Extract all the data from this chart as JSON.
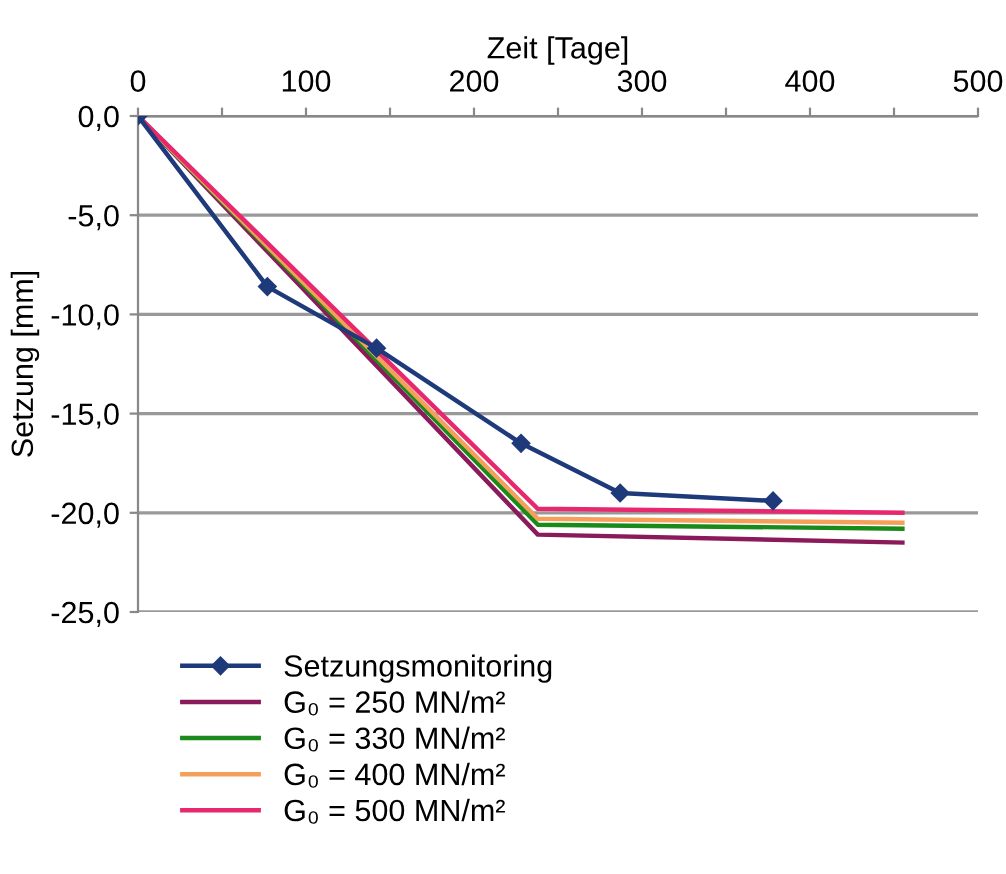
{
  "chart_data": {
    "type": "line",
    "xlabel": "Zeit [Tage]",
    "ylabel": "Setzung [mm]",
    "xlim": [
      0,
      500
    ],
    "ylim": [
      -25,
      0
    ],
    "xticks": [
      0,
      {
        "value": 50,
        "label": null
      },
      100,
      {
        "value": 150,
        "label": null
      },
      200,
      {
        "value": 250,
        "label": null
      },
      300,
      {
        "value": 350,
        "label": null
      },
      400,
      {
        "value": 450,
        "label": null
      },
      500
    ],
    "yticks": [
      {
        "value": 0,
        "label": "0,0"
      },
      {
        "value": -5,
        "label": "-5,0"
      },
      {
        "value": -10,
        "label": "-10,0"
      },
      {
        "value": -15,
        "label": "-15,0"
      },
      {
        "value": -20,
        "label": "-20,0"
      },
      {
        "value": -25,
        "label": "-25,0"
      }
    ],
    "grid": "y",
    "legend": "bottom",
    "series": [
      {
        "name": "Setzungsmonitoring",
        "color": "#1f3a7a",
        "marker": "diamond",
        "x": [
          0,
          77,
          142,
          228,
          287,
          378
        ],
        "values": [
          0,
          -8.6,
          -11.7,
          -16.5,
          -19.0,
          -19.4
        ]
      },
      {
        "name": "G₀ = 250 MN/m²",
        "color": "#8b1a5a",
        "marker": "none",
        "x": [
          0,
          238,
          455
        ],
        "values": [
          0,
          -21.1,
          -21.5
        ]
      },
      {
        "name": "G₀ = 330 MN/m²",
        "color": "#1a8a1a",
        "marker": "none",
        "x": [
          0,
          238,
          455
        ],
        "values": [
          0,
          -20.6,
          -20.8
        ]
      },
      {
        "name": "G₀ = 400 MN/m²",
        "color": "#f5a05a",
        "marker": "none",
        "x": [
          0,
          238,
          455
        ],
        "values": [
          0,
          -20.3,
          -20.5
        ]
      },
      {
        "name": "G₀ = 500 MN/m²",
        "color": "#e8286e",
        "marker": "none",
        "x": [
          0,
          238,
          455
        ],
        "values": [
          0,
          -19.8,
          -20.0
        ]
      }
    ]
  }
}
